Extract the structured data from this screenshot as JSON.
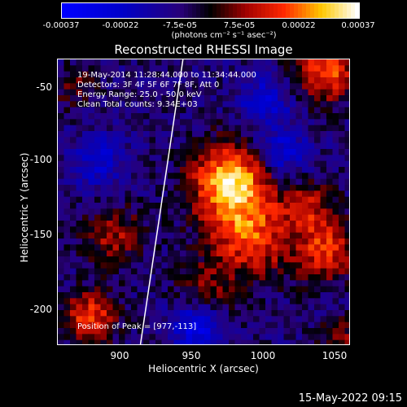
{
  "colorbar": {
    "ticks": [
      "-0.00037",
      "-0.00022",
      "-7.5e-05",
      "7.5e-05",
      "0.00022",
      "0.00037"
    ],
    "unit_label": "(photons cm⁻² s⁻¹ asec⁻²)",
    "range": [
      -0.00037,
      0.00037
    ]
  },
  "chart_data": {
    "type": "heatmap",
    "title": "Reconstructed RHESSI Image",
    "xlabel": "Heliocentric X (arcsec)",
    "ylabel": "Heliocentric Y (arcsec)",
    "xlim": [
      864,
      1056
    ],
    "ylim": [
      -224,
      -32
    ],
    "xticks": [
      "900",
      "950",
      "1000",
      "1050"
    ],
    "yticks": [
      "-50",
      "-100",
      "-150",
      "-200"
    ],
    "info": [
      "19-May-2014 11:28:44.000 to 11:34:44.000",
      "Detectors: 3F 4F 5F 6F 7F 8F, Att 0",
      "Energy Range: 25.0 - 50.0 keV",
      "Clean    Total counts: 9.34E+03"
    ],
    "peak_label": "Position of Peak = [977,-113]",
    "peak": [
      977,
      -113
    ],
    "limb_line": {
      "x": [
        918,
        946
      ],
      "y": [
        -224,
        -32
      ]
    },
    "hotspots": [
      {
        "x": 977,
        "y": -113,
        "amp": 0.00037,
        "sigma": 18
      },
      {
        "x": 990,
        "y": -150,
        "amp": 0.00026,
        "sigma": 20
      },
      {
        "x": 1040,
        "y": -40,
        "amp": 0.00028,
        "sigma": 14
      },
      {
        "x": 1040,
        "y": -160,
        "amp": 0.00024,
        "sigma": 14
      },
      {
        "x": 885,
        "y": -205,
        "amp": 0.00026,
        "sigma": 12
      },
      {
        "x": 900,
        "y": -150,
        "amp": 0.00017,
        "sigma": 14
      },
      {
        "x": 1030,
        "y": -130,
        "amp": 0.00016,
        "sigma": 12
      },
      {
        "x": 960,
        "y": -190,
        "amp": 0.00014,
        "sigma": 14
      },
      {
        "x": 1050,
        "y": -220,
        "amp": 0.00015,
        "sigma": 10
      },
      {
        "x": 875,
        "y": -50,
        "amp": 0.00012,
        "sigma": 10
      }
    ],
    "coldspots": [
      {
        "x": 955,
        "y": -210,
        "amp": -0.00025,
        "sigma": 12
      },
      {
        "x": 1010,
        "y": -95,
        "amp": -0.00018,
        "sigma": 12
      },
      {
        "x": 890,
        "y": -100,
        "amp": -0.00015,
        "sigma": 12
      },
      {
        "x": 1000,
        "y": -60,
        "amp": -0.00016,
        "sigma": 12
      }
    ]
  },
  "footer": {
    "timestamp": "15-May-2022 09:15"
  }
}
